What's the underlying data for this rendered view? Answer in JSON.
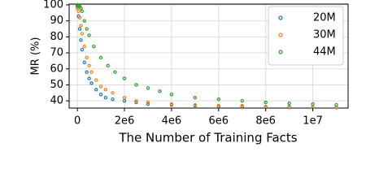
{
  "chart_data": {
    "type": "scatter",
    "ylabel": "MR (%)",
    "xlabel": "The Number of Training Facts",
    "xlim": [
      -350000,
      11500000
    ],
    "ylim": [
      35.5,
      100.5
    ],
    "xticks": [
      0,
      {
        "value": 2000000,
        "label": "2e6"
      },
      {
        "value": 4000000,
        "label": "4e6"
      },
      {
        "value": 6000000,
        "label": "6e6"
      },
      {
        "value": 8000000,
        "label": "8e6"
      },
      {
        "value": 10000000,
        "label": "1e7"
      }
    ],
    "yticks": [
      40,
      50,
      60,
      70,
      80,
      90,
      100
    ],
    "grid": true,
    "legend": "upper right",
    "series": [
      {
        "name": "20M",
        "color": "#1f77b4",
        "x": [
          0,
          50000,
          100000,
          150000,
          200000,
          300000,
          400000,
          500000,
          600000,
          800000,
          1000000,
          1200000,
          1500000,
          2000000,
          2500000,
          3000000,
          4000000,
          5000000,
          6000000,
          7000000,
          8000000,
          9000000,
          10000000,
          11000000
        ],
        "values": [
          99,
          93,
          85,
          78,
          72,
          64,
          58,
          54,
          51,
          47,
          44,
          42,
          41,
          40,
          39,
          38,
          37.5,
          37,
          36.5,
          36.5,
          36,
          36,
          35.8,
          35.8
        ]
      },
      {
        "name": "30M",
        "color": "#ff7f0e",
        "x": [
          0,
          50000,
          100000,
          150000,
          200000,
          300000,
          400000,
          500000,
          600000,
          800000,
          1000000,
          1200000,
          1500000,
          2000000,
          2500000,
          3000000,
          4000000,
          5000000,
          6000000,
          7000000,
          8000000,
          9000000,
          10000000,
          11000000
        ],
        "values": [
          98,
          96,
          92,
          87,
          82,
          74,
          67,
          62,
          58,
          53,
          49,
          47,
          45,
          42,
          40,
          39,
          38,
          37.5,
          37,
          37,
          36.5,
          36.5,
          36,
          36
        ]
      },
      {
        "name": "44M",
        "color": "#2ca02c",
        "x": [
          0,
          50000,
          100000,
          150000,
          200000,
          300000,
          400000,
          500000,
          700000,
          1000000,
          1300000,
          1600000,
          2000000,
          2500000,
          3000000,
          3500000,
          4000000,
          5000000,
          6000000,
          7000000,
          8000000,
          9000000,
          10000000,
          11000000
        ],
        "values": [
          100,
          99.5,
          99,
          98,
          96,
          90,
          85,
          81,
          74,
          67,
          62,
          58,
          54,
          50,
          48,
          46,
          44,
          42,
          41,
          40,
          39,
          38.5,
          38,
          37.5
        ]
      }
    ]
  }
}
